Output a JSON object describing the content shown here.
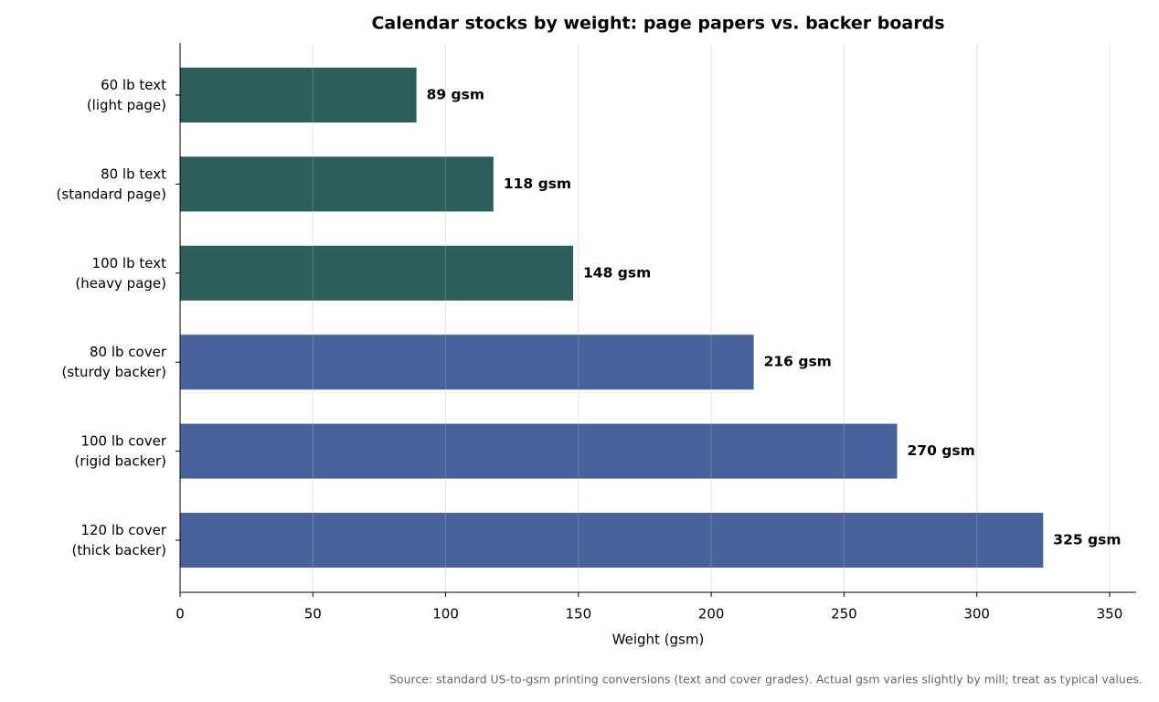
{
  "chart_data": {
    "type": "bar",
    "orientation": "horizontal",
    "title": "Calendar stocks by weight: page papers vs. backer boards",
    "categories": [
      "60 lb text\n(light page)",
      "80 lb text\n(standard page)",
      "100 lb text\n(heavy page)",
      "80 lb cover\n(sturdy backer)",
      "100 lb cover\n(rigid backer)",
      "120 lb cover\n(thick backer)"
    ],
    "values": [
      89,
      118,
      148,
      216,
      270,
      325
    ],
    "value_labels": [
      "89 gsm",
      "118 gsm",
      "148 gsm",
      "216 gsm",
      "270 gsm",
      "325 gsm"
    ],
    "colors": [
      "#2d5f5a",
      "#2d5f5a",
      "#2d5f5a",
      "#48639b",
      "#48639b",
      "#48639b"
    ],
    "xlabel": "Weight (gsm)",
    "xlim": [
      0,
      360
    ],
    "xticks": [
      0,
      50,
      100,
      150,
      200,
      250,
      300,
      350
    ],
    "grid": true,
    "source": "Source: standard US-to-gsm printing conversions (text and cover grades). Actual gsm varies slightly by mill; treat as typical values."
  }
}
